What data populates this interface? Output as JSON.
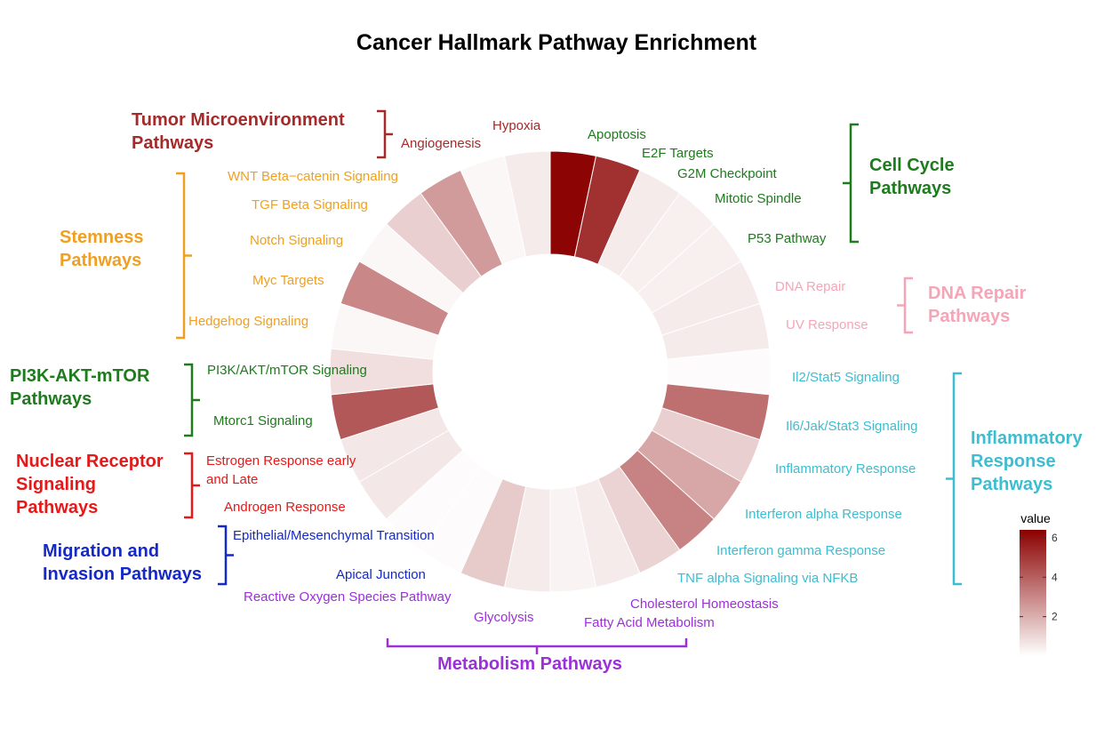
{
  "chart_data": {
    "type": "circular_bar",
    "title": "Cancer Hallmark Pathway Enrichment",
    "legend": {
      "title": "value",
      "ticks": [
        2,
        4,
        6
      ],
      "range": [
        0,
        6.4
      ],
      "low_color": "#ffffff",
      "high_color": "#8b0000",
      "placement": "right"
    },
    "pathways": [
      {
        "name": "Apoptosis",
        "value": 6.3
      },
      {
        "name": "E2F Targets",
        "value": 5.2
      },
      {
        "name": "G2M Checkpoint",
        "value": 0.5
      },
      {
        "name": "Mitotic Spindle",
        "value": 0.4
      },
      {
        "name": "P53 Pathway",
        "value": 0.4
      },
      {
        "name": "DNA Repair",
        "value": 0.5
      },
      {
        "name": "UV Response",
        "value": 0.5
      },
      {
        "name": "Il2/Stat5 Signaling",
        "value": 0.1
      },
      {
        "name": "Il6/Jak/Stat3 Signaling",
        "value": 3.6
      },
      {
        "name": "Inflammatory Response",
        "value": 1.2
      },
      {
        "name": "Interferon alpha Response",
        "value": 2.2
      },
      {
        "name": "Interferon gamma Response",
        "value": 3.1
      },
      {
        "name": "TNF alpha Signaling via NFKB",
        "value": 1.1
      },
      {
        "name": "Cholesterol Homeostasis",
        "value": 0.5
      },
      {
        "name": "Fatty Acid Metabolism",
        "value": 0.3
      },
      {
        "name": "Glycolysis",
        "value": 0.5
      },
      {
        "name": "Reactive Oxygen Species Pathway",
        "value": 1.3
      },
      {
        "name": "Apical Junction",
        "value": 0.1
      },
      {
        "name": "Epithelial/Mesenchymal Transition",
        "value": 0.1
      },
      {
        "name": "Androgen Response",
        "value": 0.6
      },
      {
        "name": "Estrogen Response early and Late",
        "value": 0.6
      },
      {
        "name": "Mtorc1 Signaling",
        "value": 4.2
      },
      {
        "name": "PI3K/AKT/mTOR Signaling",
        "value": 0.8
      },
      {
        "name": "Hedgehog Signaling",
        "value": 0.2
      },
      {
        "name": "Myc Targets",
        "value": 3.0
      },
      {
        "name": "Notch Signaling",
        "value": 0.2
      },
      {
        "name": "TGF Beta Signaling",
        "value": 1.2
      },
      {
        "name": "WNT Beta−catenin Signaling",
        "value": 2.5
      },
      {
        "name": "Angiogenesis",
        "value": 0.2
      },
      {
        "name": "Hypoxia",
        "value": 0.5
      }
    ],
    "groups": [
      {
        "label": "Tumor Microenvironment Pathways",
        "color": "#a52a2a"
      },
      {
        "label": "Cell Cycle Pathways",
        "color": "#1e7b1e"
      },
      {
        "label": "Stemness Pathways",
        "color": "#f0a020"
      },
      {
        "label": "DNA Repair Pathways",
        "color": "#f4a6b7"
      },
      {
        "label": "PI3K-AKT-mTOR Pathways",
        "color": "#1e7b1e"
      },
      {
        "label": "Inflammatory Response Pathways",
        "color": "#3dbdd0"
      },
      {
        "label": "Nuclear Receptor Signaling Pathways",
        "color": "#e81818"
      },
      {
        "label": "Migration and Invasion Pathways",
        "color": "#1528c8"
      },
      {
        "label": "Metabolism Pathways",
        "color": "#9b30d9"
      }
    ]
  }
}
